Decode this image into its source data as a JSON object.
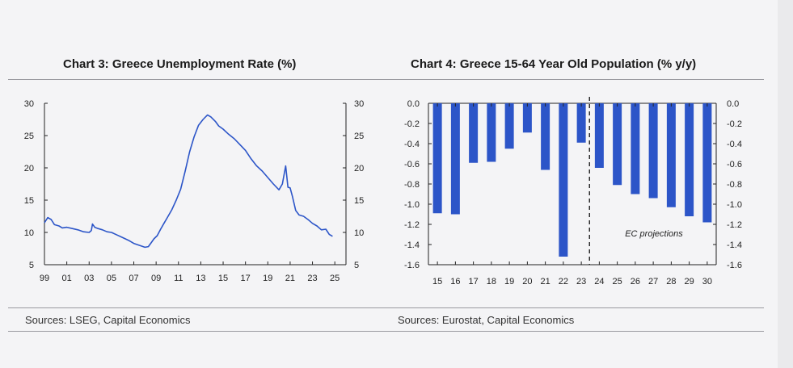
{
  "charts": [
    {
      "title": "Chart 3: Greece Unemployment Rate (%)",
      "source": "Sources: LSEG, Capital Economics"
    },
    {
      "title": "Chart 4: Greece 15-64 Year Old Population (% y/y)",
      "source": "Sources: Eurostat, Capital Economics"
    }
  ],
  "colors": {
    "series": "#2c55c8",
    "axis": "#222222"
  },
  "chart_data": [
    {
      "type": "line",
      "title": "Chart 3: Greece Unemployment Rate (%)",
      "xlabel": "",
      "ylabel": "",
      "ylim": [
        5,
        30
      ],
      "yticks": [
        "5",
        "10",
        "15",
        "20",
        "25",
        "30"
      ],
      "xtick_labels": [
        "99",
        "01",
        "03",
        "05",
        "07",
        "09",
        "11",
        "13",
        "15",
        "17",
        "19",
        "21",
        "23",
        "25"
      ],
      "xlim": [
        1999,
        2026
      ],
      "series": [
        {
          "x": [
            1999.0,
            1999.3,
            1999.6,
            1999.9,
            2000.3,
            2000.6,
            2001.0,
            2001.5,
            2002.0,
            2002.5,
            2003.0,
            2003.2,
            2003.3,
            2003.5,
            2003.8,
            2004.2,
            2004.6,
            2005.0,
            2005.5,
            2006.0,
            2006.5,
            2007.0,
            2007.5,
            2008.0,
            2008.3,
            2008.6,
            2008.8,
            2009.1,
            2009.4,
            2009.7,
            2010.0,
            2010.4,
            2010.8,
            2011.2,
            2011.6,
            2012.0,
            2012.4,
            2012.8,
            2013.2,
            2013.6,
            2013.9,
            2014.3,
            2014.6,
            2015.0,
            2015.5,
            2016.0,
            2016.5,
            2017.0,
            2017.5,
            2018.0,
            2018.5,
            2019.0,
            2019.5,
            2020.0,
            2020.3,
            2020.6,
            2020.8,
            2021.0,
            2021.2,
            2021.5,
            2021.8,
            2022.2,
            2022.6,
            2023.0,
            2023.4,
            2023.8,
            2024.2,
            2024.5,
            2024.8
          ],
          "y": [
            11.5,
            12.3,
            12.0,
            11.2,
            11.0,
            10.7,
            10.8,
            10.6,
            10.4,
            10.1,
            10.0,
            10.3,
            11.3,
            10.8,
            10.6,
            10.4,
            10.1,
            10.0,
            9.6,
            9.2,
            8.8,
            8.3,
            8.0,
            7.7,
            7.8,
            8.5,
            9.0,
            9.5,
            10.5,
            11.4,
            12.3,
            13.5,
            15.0,
            16.7,
            19.5,
            22.5,
            24.8,
            26.6,
            27.5,
            28.2,
            27.9,
            27.2,
            26.5,
            26.0,
            25.2,
            24.5,
            23.6,
            22.7,
            21.4,
            20.3,
            19.5,
            18.5,
            17.5,
            16.6,
            17.5,
            20.3,
            17.0,
            16.9,
            15.6,
            13.4,
            12.7,
            12.5,
            12.0,
            11.4,
            11.0,
            10.4,
            10.5,
            9.7,
            9.4
          ]
        }
      ]
    },
    {
      "type": "bar",
      "title": "Chart 4: Greece 15-64 Year Old Population (% y/y)",
      "xlabel": "",
      "ylabel": "",
      "ylim": [
        -1.6,
        0.0
      ],
      "yticks": [
        "-1.6",
        "-1.4",
        "-1.2",
        "-1.0",
        "-0.8",
        "-0.6",
        "-0.4",
        "-0.2",
        "0.0"
      ],
      "categories": [
        "15",
        "16",
        "17",
        "18",
        "19",
        "20",
        "21",
        "22",
        "23",
        "24",
        "25",
        "26",
        "27",
        "28",
        "29",
        "30"
      ],
      "values": [
        -1.09,
        -1.1,
        -0.59,
        -0.58,
        -0.45,
        -0.29,
        -0.66,
        -1.52,
        -0.39,
        -0.64,
        -0.81,
        -0.9,
        -0.94,
        -1.03,
        -1.12,
        -1.18
      ],
      "annotation": "EC projections"
    }
  ]
}
